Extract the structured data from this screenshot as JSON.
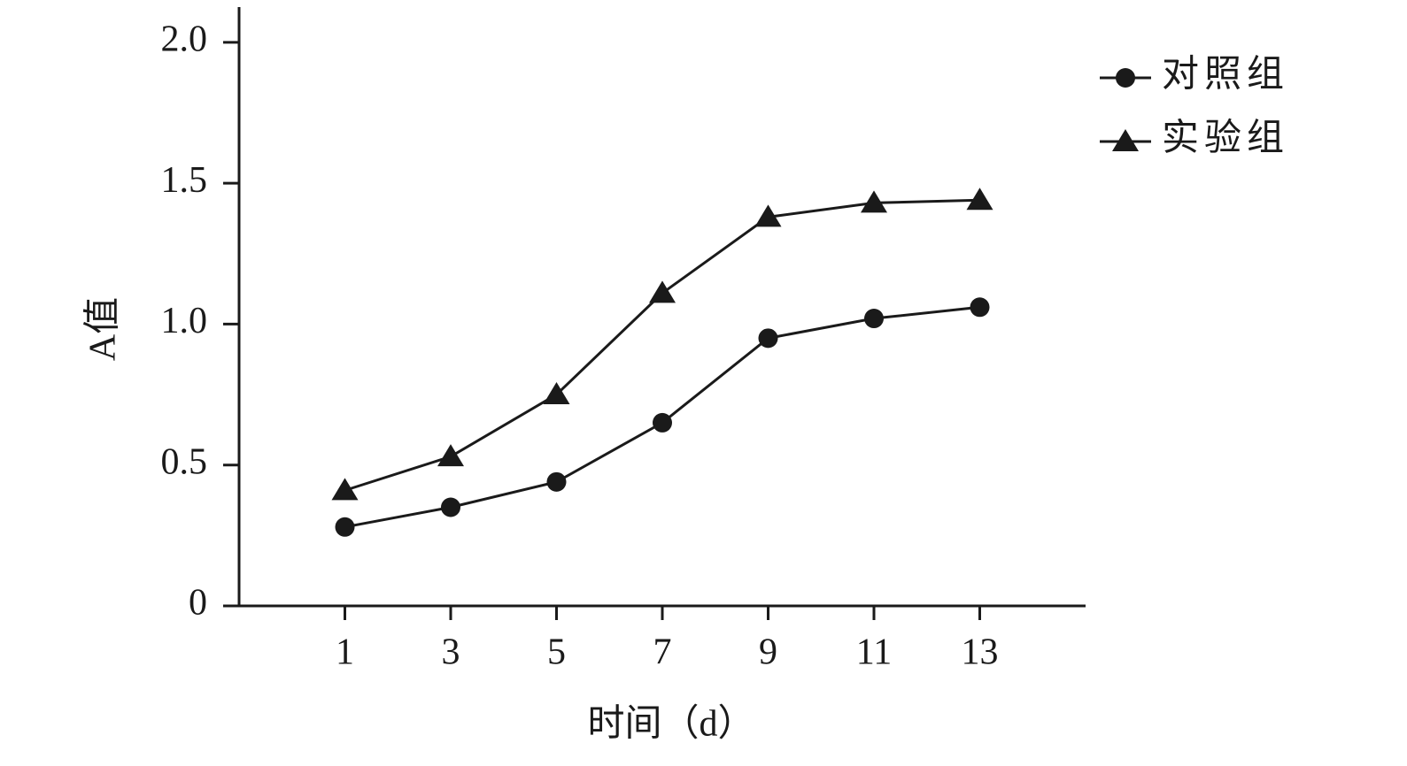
{
  "chart_data": {
    "type": "line",
    "x_label": "时间（d）",
    "y_label": "A值",
    "x": [
      1,
      3,
      5,
      7,
      9,
      11,
      13
    ],
    "series": [
      {
        "name": "对照组",
        "color": "#1a1a1a",
        "marker": "circle",
        "values": [
          0.28,
          0.35,
          0.44,
          0.65,
          0.95,
          1.02,
          1.06
        ]
      },
      {
        "name": "实验组",
        "color": "#1a1a1a",
        "marker": "triangle",
        "values": [
          0.41,
          0.53,
          0.75,
          1.11,
          1.38,
          1.43,
          1.44
        ]
      }
    ],
    "xlim": [
      -1,
      15
    ],
    "xticks": [
      1,
      3,
      5,
      7,
      9,
      11,
      13
    ],
    "ylim": [
      0,
      2.125
    ],
    "yticks": [
      0,
      0.5,
      {
        "value": 1,
        "label": "1.0"
      },
      1.5,
      {
        "value": 2,
        "label": "2.0"
      }
    ],
    "grid": false,
    "legend": "top-right"
  }
}
